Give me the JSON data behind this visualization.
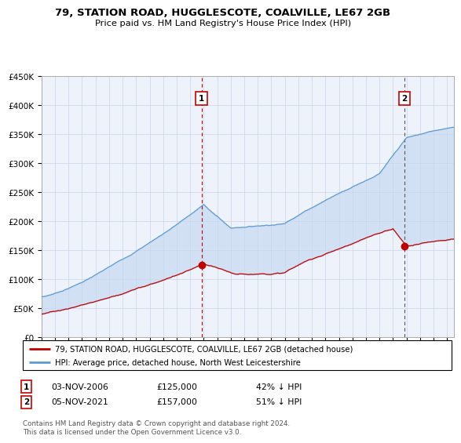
{
  "title": "79, STATION ROAD, HUGGLESCOTE, COALVILLE, LE67 2GB",
  "subtitle": "Price paid vs. HM Land Registry's House Price Index (HPI)",
  "ylim": [
    0,
    450000
  ],
  "yticks": [
    0,
    50000,
    100000,
    150000,
    200000,
    250000,
    300000,
    350000,
    400000,
    450000
  ],
  "ytick_labels": [
    "£0",
    "£50K",
    "£100K",
    "£150K",
    "£200K",
    "£250K",
    "£300K",
    "£350K",
    "£400K",
    "£450K"
  ],
  "hpi_color": "#5b9bd5",
  "hpi_fill_color": "#ddeeff",
  "price_color": "#c00000",
  "marker1_x": 2006.84,
  "marker1_y": 125000,
  "marker2_x": 2021.84,
  "marker2_y": 157000,
  "legend_line1": "79, STATION ROAD, HUGGLESCOTE, COALVILLE, LE67 2GB (detached house)",
  "legend_line2": "HPI: Average price, detached house, North West Leicestershire",
  "marker1_date": "03-NOV-2006",
  "marker1_price": "£125,000",
  "marker1_pct": "42% ↓ HPI",
  "marker2_date": "05-NOV-2021",
  "marker2_price": "£157,000",
  "marker2_pct": "51% ↓ HPI",
  "footer": "Contains HM Land Registry data © Crown copyright and database right 2024.\nThis data is licensed under the Open Government Licence v3.0.",
  "background_color": "#ffffff",
  "grid_color": "#c8d4e8",
  "xlim_start": 1995,
  "xlim_end": 2025
}
